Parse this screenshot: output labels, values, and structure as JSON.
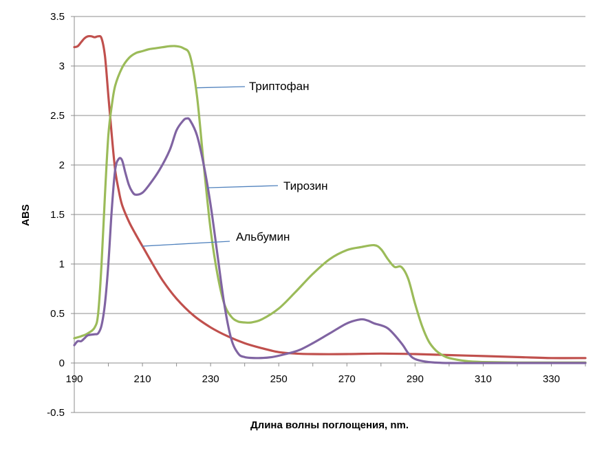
{
  "chart_data": {
    "type": "line",
    "xlabel": "Длина волны поглощения, nm.",
    "ylabel": "ABS",
    "xlim": [
      190,
      340
    ],
    "ylim": [
      -0.5,
      3.5
    ],
    "x_ticks": [
      "190",
      "210",
      "230",
      "250",
      "270",
      "290",
      "310",
      "330"
    ],
    "y_ticks": [
      "-0.5",
      "0",
      "0.5",
      "1",
      "1.5",
      "2",
      "2.5",
      "3",
      "3.5"
    ],
    "grid": "horizontal",
    "legend": "none",
    "series": [
      {
        "color": "#c0504d",
        "points": [
          [
            190,
            3.19
          ],
          [
            191,
            3.2
          ],
          [
            192,
            3.24
          ],
          [
            193,
            3.28
          ],
          [
            194,
            3.3
          ],
          [
            195,
            3.3
          ],
          [
            196,
            3.29
          ],
          [
            197,
            3.3
          ],
          [
            198,
            3.28
          ],
          [
            199,
            3.1
          ],
          [
            200,
            2.7
          ],
          [
            201,
            2.3
          ],
          [
            202,
            1.95
          ],
          [
            203,
            1.75
          ],
          [
            204,
            1.6
          ],
          [
            206,
            1.43
          ],
          [
            208,
            1.3
          ],
          [
            210,
            1.18
          ],
          [
            213,
            1.0
          ],
          [
            216,
            0.83
          ],
          [
            220,
            0.65
          ],
          [
            225,
            0.48
          ],
          [
            230,
            0.36
          ],
          [
            235,
            0.27
          ],
          [
            240,
            0.2
          ],
          [
            245,
            0.15
          ],
          [
            250,
            0.11
          ],
          [
            255,
            0.095
          ],
          [
            260,
            0.09
          ],
          [
            270,
            0.09
          ],
          [
            280,
            0.095
          ],
          [
            290,
            0.09
          ],
          [
            300,
            0.08
          ],
          [
            310,
            0.07
          ],
          [
            320,
            0.06
          ],
          [
            330,
            0.05
          ],
          [
            340,
            0.05
          ]
        ]
      },
      {
        "color": "#9bbb59",
        "points": [
          [
            190,
            0.25
          ],
          [
            192,
            0.27
          ],
          [
            194,
            0.3
          ],
          [
            196,
            0.36
          ],
          [
            197,
            0.5
          ],
          [
            198,
            1.0
          ],
          [
            199,
            1.7
          ],
          [
            200,
            2.3
          ],
          [
            201,
            2.6
          ],
          [
            202,
            2.8
          ],
          [
            204,
            2.98
          ],
          [
            206,
            3.08
          ],
          [
            208,
            3.13
          ],
          [
            210,
            3.15
          ],
          [
            212,
            3.17
          ],
          [
            214,
            3.18
          ],
          [
            216,
            3.19
          ],
          [
            218,
            3.2
          ],
          [
            220,
            3.2
          ],
          [
            222,
            3.18
          ],
          [
            224,
            3.1
          ],
          [
            226,
            2.7
          ],
          [
            228,
            2.0
          ],
          [
            230,
            1.35
          ],
          [
            232,
            0.9
          ],
          [
            234,
            0.6
          ],
          [
            236,
            0.47
          ],
          [
            238,
            0.42
          ],
          [
            240,
            0.41
          ],
          [
            242,
            0.41
          ],
          [
            245,
            0.44
          ],
          [
            250,
            0.55
          ],
          [
            255,
            0.72
          ],
          [
            260,
            0.9
          ],
          [
            265,
            1.05
          ],
          [
            270,
            1.14
          ],
          [
            274,
            1.17
          ],
          [
            278,
            1.19
          ],
          [
            280,
            1.15
          ],
          [
            282,
            1.05
          ],
          [
            284,
            0.97
          ],
          [
            286,
            0.97
          ],
          [
            288,
            0.85
          ],
          [
            290,
            0.6
          ],
          [
            292,
            0.38
          ],
          [
            294,
            0.22
          ],
          [
            296,
            0.13
          ],
          [
            298,
            0.08
          ],
          [
            300,
            0.05
          ],
          [
            305,
            0.02
          ],
          [
            310,
            0.01
          ],
          [
            320,
            0.005
          ],
          [
            330,
            0.005
          ],
          [
            340,
            0.005
          ]
        ]
      },
      {
        "color": "#8064a2",
        "points": [
          [
            190,
            0.18
          ],
          [
            191,
            0.22
          ],
          [
            192,
            0.22
          ],
          [
            193,
            0.25
          ],
          [
            194,
            0.28
          ],
          [
            196,
            0.29
          ],
          [
            197,
            0.3
          ],
          [
            198,
            0.38
          ],
          [
            199,
            0.6
          ],
          [
            200,
            1.0
          ],
          [
            201,
            1.55
          ],
          [
            202,
            1.95
          ],
          [
            203,
            2.06
          ],
          [
            204,
            2.05
          ],
          [
            205,
            1.92
          ],
          [
            206,
            1.8
          ],
          [
            207,
            1.73
          ],
          [
            208,
            1.7
          ],
          [
            210,
            1.72
          ],
          [
            212,
            1.8
          ],
          [
            215,
            1.95
          ],
          [
            218,
            2.15
          ],
          [
            220,
            2.35
          ],
          [
            222,
            2.45
          ],
          [
            223,
            2.47
          ],
          [
            224,
            2.45
          ],
          [
            226,
            2.3
          ],
          [
            228,
            2.0
          ],
          [
            230,
            1.6
          ],
          [
            232,
            1.1
          ],
          [
            234,
            0.6
          ],
          [
            236,
            0.25
          ],
          [
            238,
            0.1
          ],
          [
            240,
            0.06
          ],
          [
            244,
            0.05
          ],
          [
            248,
            0.06
          ],
          [
            252,
            0.09
          ],
          [
            256,
            0.13
          ],
          [
            260,
            0.2
          ],
          [
            265,
            0.3
          ],
          [
            270,
            0.4
          ],
          [
            274,
            0.44
          ],
          [
            276,
            0.43
          ],
          [
            278,
            0.4
          ],
          [
            282,
            0.35
          ],
          [
            286,
            0.2
          ],
          [
            288,
            0.1
          ],
          [
            290,
            0.04
          ],
          [
            294,
            0.01
          ],
          [
            300,
            0.0
          ],
          [
            310,
            0.0
          ],
          [
            320,
            0.0
          ],
          [
            340,
            0.0
          ]
        ]
      }
    ],
    "annotations": [
      {
        "text": "Триптофан",
        "x": 226,
        "y": 2.78
      },
      {
        "text": "Тирозин",
        "x": 229,
        "y": 1.77
      },
      {
        "text": "Альбумин",
        "x": 210,
        "y": 1.18
      }
    ]
  }
}
